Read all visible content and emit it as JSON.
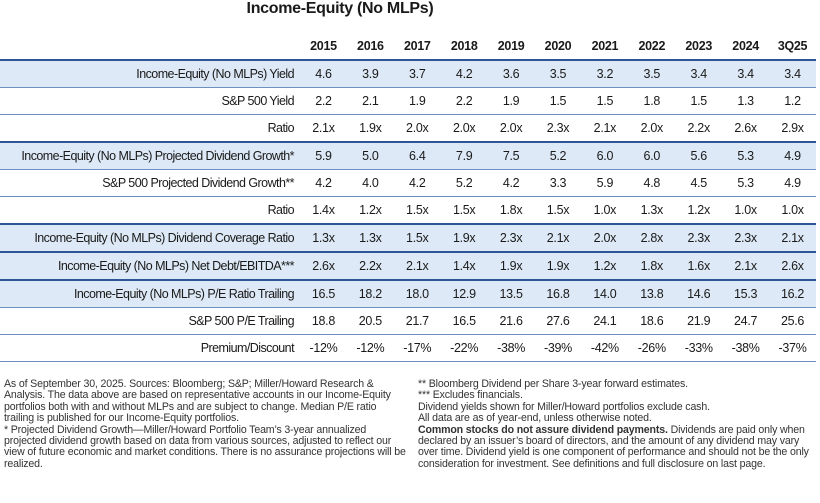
{
  "title": "Income-Equity (No MLPs)",
  "table": {
    "columns": [
      "2015",
      "2016",
      "2017",
      "2018",
      "2019",
      "2020",
      "2021",
      "2022",
      "2023",
      "2024",
      "3Q25"
    ],
    "rows": [
      {
        "label": "Income-Equity (No MLPs) Yield",
        "values": [
          "4.6",
          "3.9",
          "3.7",
          "4.2",
          "3.6",
          "3.5",
          "3.2",
          "3.5",
          "3.4",
          "3.4",
          "3.4"
        ]
      },
      {
        "label": "S&P 500 Yield",
        "values": [
          "2.2",
          "2.1",
          "1.9",
          "2.2",
          "1.9",
          "1.5",
          "1.5",
          "1.8",
          "1.5",
          "1.3",
          "1.2"
        ]
      },
      {
        "label": "Ratio",
        "values": [
          "2.1x",
          "1.9x",
          "2.0x",
          "2.0x",
          "2.0x",
          "2.3x",
          "2.1x",
          "2.0x",
          "2.2x",
          "2.6x",
          "2.9x"
        ]
      },
      {
        "label": "Income-Equity (No MLPs) Projected Dividend Growth*",
        "values": [
          "5.9",
          "5.0",
          "6.4",
          "7.9",
          "7.5",
          "5.2",
          "6.0",
          "6.0",
          "5.6",
          "5.3",
          "4.9"
        ]
      },
      {
        "label": "S&P 500 Projected Dividend Growth**",
        "values": [
          "4.2",
          "4.0",
          "4.2",
          "5.2",
          "4.2",
          "3.3",
          "5.9",
          "4.8",
          "4.5",
          "5.3",
          "4.9"
        ]
      },
      {
        "label": "Ratio",
        "values": [
          "1.4x",
          "1.2x",
          "1.5x",
          "1.5x",
          "1.8x",
          "1.5x",
          "1.0x",
          "1.3x",
          "1.2x",
          "1.0x",
          "1.0x"
        ]
      },
      {
        "label": "Income-Equity (No MLPs) Dividend Coverage Ratio",
        "values": [
          "1.3x",
          "1.3x",
          "1.5x",
          "1.9x",
          "2.3x",
          "2.1x",
          "2.0x",
          "2.8x",
          "2.3x",
          "2.3x",
          "2.1x"
        ]
      },
      {
        "label": "Income-Equity (No MLPs) Net Debt/EBITDA***",
        "values": [
          "2.6x",
          "2.2x",
          "2.1x",
          "1.4x",
          "1.9x",
          "1.9x",
          "1.2x",
          "1.8x",
          "1.6x",
          "2.1x",
          "2.6x"
        ]
      },
      {
        "label": "Income-Equity (No MLPs) P/E Ratio Trailing",
        "values": [
          "16.5",
          "18.2",
          "18.0",
          "12.9",
          "13.5",
          "16.8",
          "14.0",
          "13.8",
          "14.6",
          "15.3",
          "16.2"
        ]
      },
      {
        "label": "S&P 500 P/E Trailing",
        "values": [
          "18.8",
          "20.5",
          "21.7",
          "16.5",
          "21.6",
          "27.6",
          "24.1",
          "18.6",
          "21.9",
          "24.7",
          "25.6"
        ]
      },
      {
        "label": "Premium/Discount",
        "values": [
          "-12%",
          "-12%",
          "-17%",
          "-22%",
          "-38%",
          "-39%",
          "-42%",
          "-26%",
          "-33%",
          "-38%",
          "-37%"
        ]
      }
    ]
  },
  "notes": {
    "left": [
      "As of September 30, 2025. Sources: Bloomberg; S&P; Miller/Howard Research & Analysis. The data above are based on representative accounts in our Income-Equity portfolios both with and without MLPs and are subject to change. Median P/E ratio trailing is published for our Income-Equity portfolios.",
      "* Projected Dividend Growth—Miller/Howard Portfolio Team’s 3-year annualized projected dividend growth based on data from various sources, adjusted to reflect our view of future economic and market conditions. There is no assurance projections will be realized."
    ],
    "right": [
      "** Bloomberg Dividend per Share 3-year forward estimates.",
      "*** Excludes financials.",
      "Dividend yields shown for Miller/Howard portfolios exclude cash.",
      "All data are as of year-end, unless otherwise noted."
    ],
    "disclaimer_bold": "Common stocks do not assure dividend payments.",
    "disclaimer": "Dividends are paid only when declared by an issuer’s board of directors, and the amount of any dividend may vary over time. Dividend yield is one component of performance and should not be the only consideration for investment. See definitions and full disclosure on last page."
  }
}
